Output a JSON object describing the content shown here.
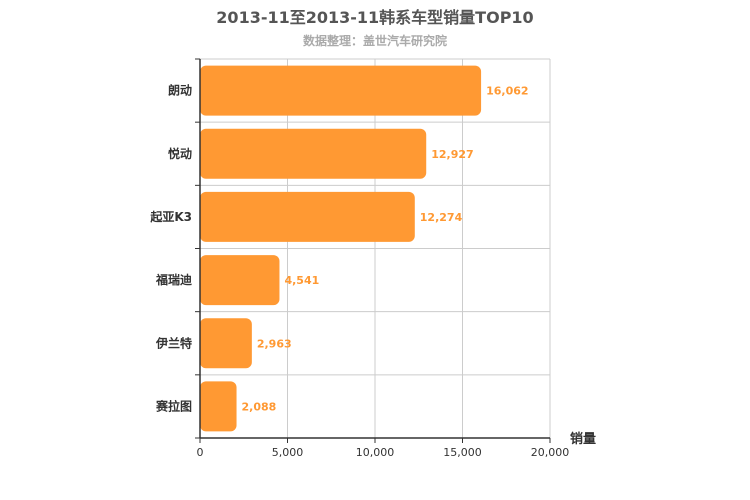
{
  "title": "2013-11至2013-11韩系车型销量TOP10",
  "subtitle": "数据整理：盖世汽车研究院",
  "colors": {
    "bar": "#ff9933",
    "grid": "#cccccc",
    "axis": "#333333"
  },
  "chart_data": {
    "type": "bar",
    "orientation": "horizontal",
    "categories": [
      "朗动",
      "悦动",
      "起亚K3",
      "福瑞迪",
      "伊兰特",
      "赛拉图"
    ],
    "values": [
      16062,
      12927,
      12274,
      4541,
      2963,
      2088
    ],
    "value_labels": [
      "16,062",
      "12,927",
      "12,274",
      "4,541",
      "2,963",
      "2,088"
    ],
    "xlabel": "销量",
    "xlim": [
      0,
      20000
    ],
    "xticks": [
      0,
      5000,
      10000,
      15000,
      20000
    ],
    "xtick_labels": [
      "0",
      "5,000",
      "10,000",
      "15,000",
      "20,000"
    ],
    "grid": true
  }
}
